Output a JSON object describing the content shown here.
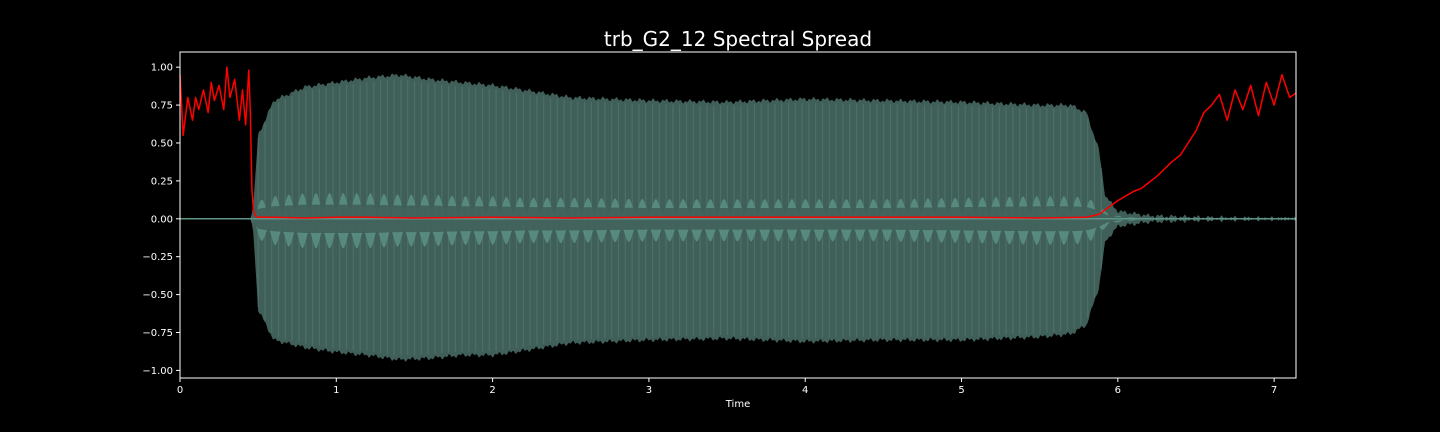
{
  "chart_data": {
    "type": "line",
    "title": "trb_G2_12 Spectral Spread",
    "xlabel": "Time",
    "ylabel": "",
    "xlim": [
      0,
      7.14
    ],
    "ylim": [
      -1.05,
      1.1
    ],
    "x_ticks": [
      0,
      1,
      2,
      3,
      4,
      5,
      6,
      7
    ],
    "x_tick_labels": [
      "0",
      "1",
      "2",
      "3",
      "4",
      "5",
      "6",
      "7"
    ],
    "y_ticks": [
      1.0,
      0.75,
      0.5,
      0.25,
      0.0,
      -0.25,
      -0.5,
      -0.75,
      -1.0
    ],
    "y_tick_labels": [
      "1.00",
      "0.75",
      "0.50",
      "0.25",
      "0.00",
      "−0.25",
      "−0.50",
      "−0.75",
      "−1.00"
    ],
    "grid": false,
    "legend": "none",
    "colors": {
      "background": "#000000",
      "axes": "#ffffff",
      "waveform": "#3f5f58",
      "waveform_bright": "#5e9488",
      "spread_line": "#ff0000"
    },
    "series": [
      {
        "kind": "waveform-envelope",
        "x": [
          0,
          0.45,
          0.47,
          0.5,
          0.6,
          0.8,
          1.0,
          1.2,
          1.4,
          1.6,
          1.8,
          2.0,
          2.2,
          2.5,
          3.0,
          3.5,
          4.0,
          4.5,
          5.0,
          5.5,
          5.7,
          5.8,
          5.88,
          5.92,
          6.0,
          6.2,
          6.5,
          7.14
        ],
        "upper": [
          0.0,
          0.0,
          0.1,
          0.55,
          0.78,
          0.87,
          0.9,
          0.93,
          0.95,
          0.92,
          0.9,
          0.88,
          0.85,
          0.8,
          0.78,
          0.77,
          0.79,
          0.78,
          0.77,
          0.75,
          0.75,
          0.7,
          0.45,
          0.15,
          0.05,
          0.02,
          0.01,
          0.0
        ],
        "lower": [
          0.0,
          0.0,
          -0.1,
          -0.6,
          -0.8,
          -0.85,
          -0.88,
          -0.9,
          -0.93,
          -0.92,
          -0.9,
          -0.9,
          -0.87,
          -0.82,
          -0.8,
          -0.79,
          -0.81,
          -0.8,
          -0.8,
          -0.78,
          -0.76,
          -0.7,
          -0.45,
          -0.15,
          -0.05,
          -0.02,
          -0.01,
          0.0
        ],
        "inner_band": [
          0.0,
          0.0,
          0.05,
          0.12,
          0.15,
          0.17,
          0.17,
          0.17,
          0.16,
          0.16,
          0.15,
          0.15,
          0.14,
          0.14,
          0.13,
          0.13,
          0.13,
          0.13,
          0.14,
          0.15,
          0.15,
          0.14,
          0.1,
          0.05,
          0.02,
          0.0,
          0.0,
          0.0
        ],
        "oscillation_period": 0.087
      },
      {
        "kind": "line",
        "x": [
          0.0,
          0.02,
          0.05,
          0.08,
          0.1,
          0.12,
          0.15,
          0.18,
          0.2,
          0.22,
          0.25,
          0.28,
          0.3,
          0.32,
          0.35,
          0.38,
          0.4,
          0.42,
          0.44,
          0.45,
          0.46,
          0.47,
          0.48,
          0.5,
          0.6,
          0.8,
          1.0,
          1.2,
          1.5,
          2.0,
          2.5,
          3.0,
          3.5,
          4.0,
          4.5,
          5.0,
          5.5,
          5.8,
          5.88,
          5.92,
          5.96,
          6.0,
          6.05,
          6.1,
          6.15,
          6.2,
          6.25,
          6.3,
          6.35,
          6.4,
          6.45,
          6.5,
          6.55,
          6.6,
          6.65,
          6.7,
          6.75,
          6.8,
          6.85,
          6.9,
          6.95,
          7.0,
          7.05,
          7.1,
          7.14
        ],
        "y": [
          0.95,
          0.55,
          0.8,
          0.65,
          0.8,
          0.72,
          0.85,
          0.7,
          0.9,
          0.78,
          0.88,
          0.72,
          1.0,
          0.8,
          0.92,
          0.65,
          0.85,
          0.62,
          0.98,
          0.7,
          0.2,
          0.06,
          0.02,
          0.01,
          0.01,
          0.005,
          0.01,
          0.01,
          0.005,
          0.01,
          0.005,
          0.01,
          0.01,
          0.01,
          0.01,
          0.01,
          0.005,
          0.01,
          0.03,
          0.06,
          0.09,
          0.12,
          0.15,
          0.18,
          0.2,
          0.24,
          0.28,
          0.33,
          0.38,
          0.42,
          0.5,
          0.58,
          0.7,
          0.75,
          0.82,
          0.65,
          0.85,
          0.72,
          0.88,
          0.68,
          0.9,
          0.75,
          0.95,
          0.8,
          0.83
        ]
      }
    ]
  }
}
